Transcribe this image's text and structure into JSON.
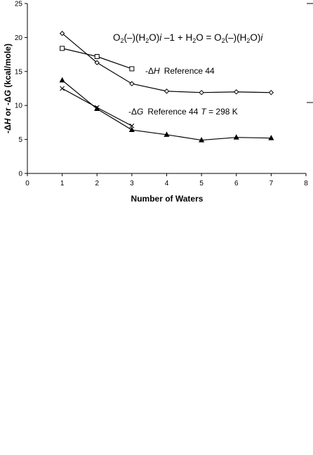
{
  "chart_data": {
    "type": "line",
    "xlabel": "Number of Waters",
    "ylabel_parts": [
      "-Δ",
      "H",
      " or -Δ",
      "G",
      " (kcal/mole)"
    ],
    "xlim": [
      0,
      8
    ],
    "ylim": [
      0,
      25
    ],
    "xticks": [
      "0",
      "1",
      "2",
      "3",
      "4",
      "5",
      "6",
      "7",
      "8"
    ],
    "yticks": [
      "0",
      "5",
      "10",
      "15",
      "20",
      "25"
    ],
    "grid": false,
    "series": [
      {
        "marker": "diamond",
        "x": [
          1,
          2,
          3,
          4,
          5,
          6,
          7
        ],
        "y": [
          20.6,
          16.3,
          13.2,
          12.1,
          11.9,
          12.0,
          11.9
        ]
      },
      {
        "marker": "square",
        "x": [
          1,
          2,
          3
        ],
        "y": [
          18.4,
          17.2,
          15.4
        ]
      },
      {
        "marker": "triangle",
        "x": [
          1,
          2,
          3,
          4,
          5,
          6,
          7
        ],
        "y": [
          13.7,
          9.5,
          6.4,
          5.7,
          4.9,
          5.3,
          5.2
        ]
      },
      {
        "marker": "cross",
        "x": [
          1,
          2,
          3
        ],
        "y": [
          12.5,
          9.7,
          7.0
        ]
      }
    ],
    "annotations": {
      "equation": {
        "o2a": "O",
        "o2a_sub": "2",
        "part1": "(–)(H",
        "h2a_sub": "2",
        "part2": "O)",
        "i1": "i",
        "part3": " –1 + H",
        "h2b_sub": "2",
        "part4": "O = O",
        "o2b_sub": "2",
        "part5": "(–)(H",
        "h2c_sub": "2",
        "part6": "O)",
        "i2": "i"
      },
      "dh_label": {
        "prefix": "-Δ",
        "var": "H",
        "ref": "Reference 44"
      },
      "dg_label": {
        "prefix": "-Δ",
        "var": "G",
        "ref": "Reference 44",
        "tvar": "T",
        "tval": " = 298 K"
      }
    }
  }
}
